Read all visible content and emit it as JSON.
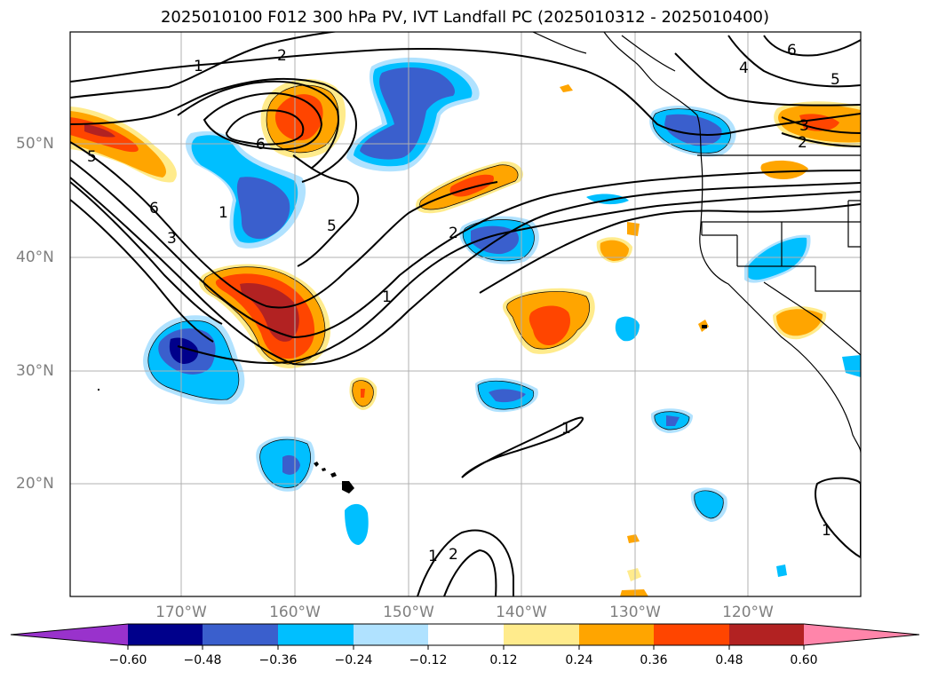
{
  "title": "2025010100 F012 300 hPa PV, IVT Landfall PC (2025010312 - 2025010400)",
  "lat_labels": [
    "50°N",
    "40°N",
    "30°N",
    "20°N"
  ],
  "lon_labels": [
    "170°W",
    "160°W",
    "150°W",
    "140°W",
    "130°W",
    "120°W"
  ],
  "colorbar": {
    "ticks": [
      "−0.60",
      "−0.48",
      "−0.36",
      "−0.24",
      "−0.12",
      "0.12",
      "0.24",
      "0.36",
      "0.48",
      "0.60"
    ],
    "colors": {
      "under": "#9932cc",
      "b1": "#00008b",
      "b2": "#3a5fcd",
      "b3": "#00bfff",
      "b4": "#b0e2ff",
      "b5": "#ffffff",
      "b6": "#ffeb8c",
      "b7": "#ffa500",
      "b8": "#ff4500",
      "b9": "#b22222",
      "over": "#ff85aa"
    }
  },
  "contour_labels": [
    "1",
    "2",
    "6",
    "5",
    "1",
    "5",
    "6",
    "4",
    "3",
    "5",
    "2",
    "1",
    "1",
    "1",
    "2",
    "6",
    "5",
    "3",
    "2",
    "1"
  ]
}
